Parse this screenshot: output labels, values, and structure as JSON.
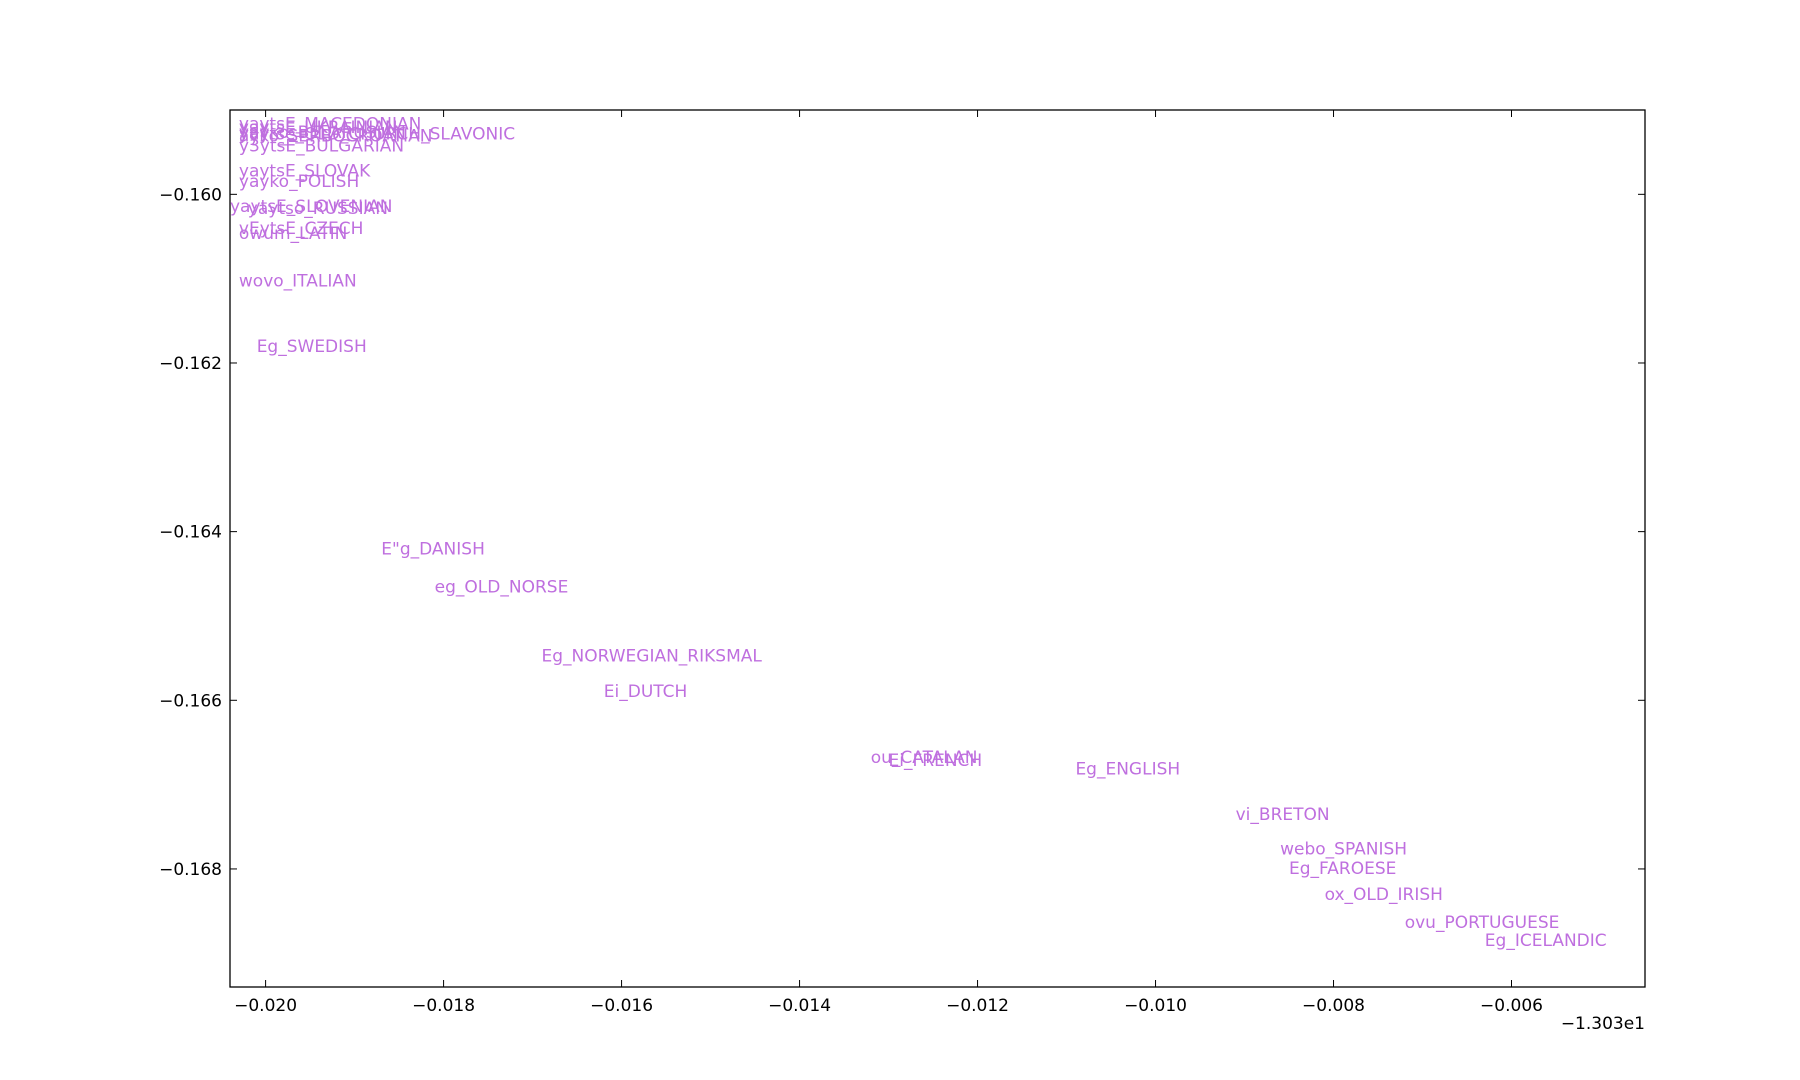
{
  "chart_data": {
    "type": "scatter",
    "title": "",
    "xlabel": "",
    "ylabel": "",
    "x_offset_label": "−1.303e1",
    "xlim": [
      -0.0204,
      -0.0045
    ],
    "ylim": [
      -0.1694,
      -0.159
    ],
    "xticks": [
      -0.02,
      -0.018,
      -0.016,
      -0.014,
      -0.012,
      -0.01,
      -0.008,
      -0.006
    ],
    "xtick_labels": [
      "−0.020",
      "−0.018",
      "−0.016",
      "−0.014",
      "−0.012",
      "−0.010",
      "−0.008",
      "−0.006"
    ],
    "yticks": [
      -0.16,
      -0.162,
      -0.164,
      -0.166,
      -0.168
    ],
    "ytick_labels": [
      "−0.160",
      "−0.162",
      "−0.164",
      "−0.166",
      "−0.168"
    ],
    "grid": false,
    "label_color": "#bf6fdf",
    "points": [
      {
        "label": "yaytsE_MACEDONIAN",
        "x": -0.0203,
        "y": -0.15916
      },
      {
        "label": "yaytsE_UKRAINIAN",
        "x": -0.0203,
        "y": -0.1592
      },
      {
        "label": "yayko_BELARUSIAN",
        "x": -0.0203,
        "y": -0.15926
      },
      {
        "label": "ayko_SERBOCROATIAN",
        "x": -0.0203,
        "y": -0.1593
      },
      {
        "label": "yaytse_OLD_CHURCH_SLAVONIC",
        "x": -0.0203,
        "y": -0.15928
      },
      {
        "label": "y3ytsE_BULGARIAN",
        "x": -0.0203,
        "y": -0.15942
      },
      {
        "label": "yaytsE_SLOVAK",
        "x": -0.0203,
        "y": -0.15972
      },
      {
        "label": "yayko_POLISH",
        "x": -0.0203,
        "y": -0.15984
      },
      {
        "label": "yaytsE_SLOVENIAN",
        "x": -0.0204,
        "y": -0.16014
      },
      {
        "label": "yaytso_RUSSIAN",
        "x": -0.0202,
        "y": -0.16016
      },
      {
        "label": "vEytsE_CZECH",
        "x": -0.0203,
        "y": -0.1604
      },
      {
        "label": "owum_LATIN",
        "x": -0.0203,
        "y": -0.16046
      },
      {
        "label": "wovo_ITALIAN",
        "x": -0.0203,
        "y": -0.16102
      },
      {
        "label": "Eg_SWEDISH",
        "x": -0.0201,
        "y": -0.1618
      },
      {
        "label": "E\"g_DANISH",
        "x": -0.0187,
        "y": -0.1642
      },
      {
        "label": "eg_OLD_NORSE",
        "x": -0.0181,
        "y": -0.16465
      },
      {
        "label": "Eg_NORWEGIAN_RIKSMAL",
        "x": -0.0169,
        "y": -0.16547
      },
      {
        "label": "Ei_DUTCH",
        "x": -0.0162,
        "y": -0.16589
      },
      {
        "label": "ou_CATALAN",
        "x": -0.0132,
        "y": -0.16667
      },
      {
        "label": "Ei_FRENCH",
        "x": -0.013,
        "y": -0.16671
      },
      {
        "label": "Eg_ENGLISH",
        "x": -0.0109,
        "y": -0.16681
      },
      {
        "label": "vi_BRETON",
        "x": -0.0091,
        "y": -0.16735
      },
      {
        "label": "webo_SPANISH",
        "x": -0.0086,
        "y": -0.16776
      },
      {
        "label": "Eg_FAROESE",
        "x": -0.0085,
        "y": -0.16799
      },
      {
        "label": "ox_OLD_IRISH",
        "x": -0.0081,
        "y": -0.1683
      },
      {
        "label": "ovu_PORTUGUESE",
        "x": -0.0072,
        "y": -0.16863
      },
      {
        "label": "Eg_ICELANDIC",
        "x": -0.0063,
        "y": -0.16884
      }
    ]
  }
}
